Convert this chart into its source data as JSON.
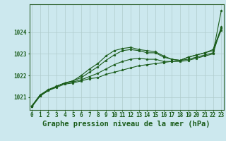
{
  "background_color": "#cce8ee",
  "grid_color": "#b0cccc",
  "line_color": "#1a5c1a",
  "spine_color": "#336633",
  "title": "Graphe pression niveau de la mer (hPa)",
  "hours": [
    0,
    1,
    2,
    3,
    4,
    5,
    6,
    7,
    8,
    9,
    10,
    11,
    12,
    13,
    14,
    15,
    16,
    17,
    18,
    19,
    20,
    21,
    22,
    23
  ],
  "ylim": [
    1020.4,
    1025.3
  ],
  "yticks": [
    1021,
    1022,
    1023,
    1024
  ],
  "series": [
    [
      1020.55,
      1021.05,
      1021.3,
      1021.45,
      1021.6,
      1021.65,
      1021.75,
      1021.85,
      1021.9,
      1022.05,
      1022.15,
      1022.25,
      1022.35,
      1022.45,
      1022.5,
      1022.55,
      1022.6,
      1022.65,
      1022.7,
      1022.75,
      1022.85,
      1022.95,
      1023.05,
      1025.0
    ],
    [
      1020.55,
      1021.05,
      1021.3,
      1021.5,
      1021.65,
      1021.7,
      1021.8,
      1021.95,
      1022.1,
      1022.3,
      1022.5,
      1022.65,
      1022.75,
      1022.8,
      1022.75,
      1022.75,
      1022.65,
      1022.65,
      1022.65,
      1022.7,
      1022.8,
      1022.9,
      1023.0,
      1024.25
    ],
    [
      1020.6,
      1021.1,
      1021.3,
      1021.5,
      1021.65,
      1021.75,
      1021.9,
      1022.15,
      1022.4,
      1022.7,
      1022.95,
      1023.15,
      1023.2,
      1023.15,
      1023.05,
      1023.05,
      1022.85,
      1022.75,
      1022.7,
      1022.85,
      1022.95,
      1023.05,
      1023.15,
      1024.1
    ],
    [
      1020.55,
      1021.1,
      1021.35,
      1021.5,
      1021.65,
      1021.75,
      1022.0,
      1022.3,
      1022.55,
      1022.9,
      1023.15,
      1023.25,
      1023.3,
      1023.2,
      1023.15,
      1023.1,
      1022.9,
      1022.75,
      1022.7,
      1022.85,
      1022.95,
      1023.05,
      1023.2,
      1024.2
    ]
  ],
  "title_fontsize": 7.5,
  "tick_fontsize": 5.5
}
